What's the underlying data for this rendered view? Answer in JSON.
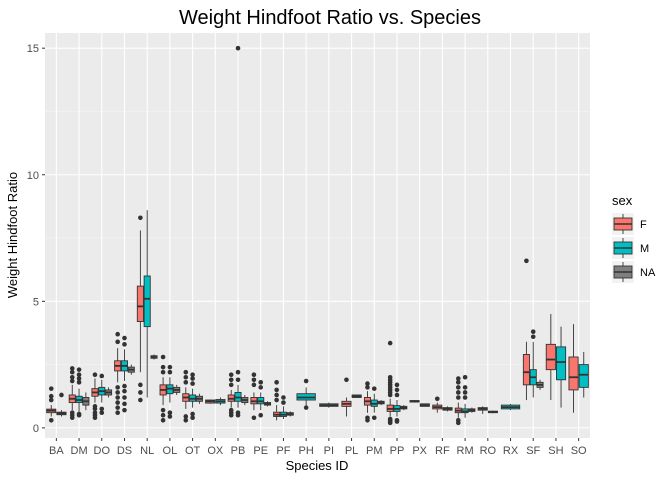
{
  "chart_data": {
    "type": "boxplot",
    "title": "Weight Hindfoot Ratio vs. Species",
    "xlabel": "Species ID",
    "ylabel": "Weight Hindfoot Ratio",
    "ylim": [
      -0.4,
      15.6
    ],
    "yticks": [
      0,
      5,
      10,
      15
    ],
    "grid": true,
    "categories": [
      "BA",
      "DM",
      "DO",
      "DS",
      "NL",
      "OL",
      "OT",
      "OX",
      "PB",
      "PE",
      "PF",
      "PH",
      "PI",
      "PL",
      "PM",
      "PP",
      "PX",
      "RF",
      "RM",
      "RO",
      "RX",
      "SF",
      "SH",
      "SO"
    ],
    "legend": {
      "title": "sex",
      "position": "right",
      "entries": [
        {
          "label": "F",
          "color": "#F8766D"
        },
        {
          "label": "M",
          "color": "#00BFC4"
        },
        {
          "label": "NA",
          "color": "#7F7F7F"
        }
      ]
    },
    "series": [
      {
        "sex": "F",
        "color": "#F8766D",
        "boxes": [
          {
            "cat": "BA",
            "q1": 0.6,
            "median": 0.68,
            "q3": 0.74,
            "lo": 0.45,
            "hi": 0.9,
            "out": [
              1.1,
              1.25,
              1.55,
              0.3
            ]
          },
          {
            "cat": "DM",
            "q1": 1.0,
            "median": 1.15,
            "q3": 1.3,
            "lo": 0.7,
            "hi": 1.7,
            "out": [
              0.4,
              0.5,
              0.6,
              1.85,
              2.0,
              2.2,
              2.35
            ]
          },
          {
            "cat": "DO",
            "q1": 1.25,
            "median": 1.4,
            "q3": 1.55,
            "lo": 1.0,
            "hi": 1.95,
            "out": [
              0.4,
              0.5,
              0.6,
              0.75,
              0.85,
              2.1
            ]
          },
          {
            "cat": "DS",
            "q1": 2.25,
            "median": 2.45,
            "q3": 2.65,
            "lo": 1.8,
            "hi": 3.15,
            "out": [
              0.6,
              0.8,
              1.0,
              1.2,
              1.4,
              1.6,
              3.4,
              3.7
            ]
          },
          {
            "cat": "NL",
            "q1": 4.2,
            "median": 4.8,
            "q3": 5.6,
            "lo": 2.2,
            "hi": 7.8,
            "out": [
              1.1,
              1.4,
              1.7,
              8.3
            ]
          },
          {
            "cat": "OL",
            "q1": 1.3,
            "median": 1.5,
            "q3": 1.7,
            "lo": 0.9,
            "hi": 2.0,
            "out": [
              0.3,
              0.5,
              0.7,
              2.2,
              2.4,
              2.8
            ]
          },
          {
            "cat": "OT",
            "q1": 1.05,
            "median": 1.2,
            "q3": 1.35,
            "lo": 0.75,
            "hi": 1.6,
            "out": [
              0.3,
              0.45,
              1.8,
              2.0,
              2.2
            ]
          },
          {
            "cat": "PB",
            "q1": 1.05,
            "median": 1.15,
            "q3": 1.3,
            "lo": 0.8,
            "hi": 1.5,
            "out": [
              0.5,
              0.6,
              0.7,
              1.7,
              1.9,
              2.1
            ]
          },
          {
            "cat": "PE",
            "q1": 0.95,
            "median": 1.05,
            "q3": 1.2,
            "lo": 0.7,
            "hi": 1.4,
            "out": [
              0.4,
              1.7,
              1.9,
              2.1
            ]
          },
          {
            "cat": "PF",
            "q1": 0.45,
            "median": 0.52,
            "q3": 0.62,
            "lo": 0.3,
            "hi": 0.9,
            "out": [
              1.1,
              1.3,
              1.5,
              1.8
            ]
          },
          {
            "cat": "PM",
            "q1": 0.9,
            "median": 1.05,
            "q3": 1.2,
            "lo": 0.6,
            "hi": 1.45,
            "out": [
              0.3,
              0.4,
              1.6,
              1.75
            ]
          },
          {
            "cat": "PP",
            "q1": 0.65,
            "median": 0.75,
            "q3": 0.9,
            "lo": 0.45,
            "hi": 1.15,
            "out": [
              0.2,
              0.25,
              0.3,
              0.35,
              1.3,
              1.4,
              1.5,
              1.6,
              1.7,
              1.8,
              1.9,
              2.0,
              3.35
            ]
          },
          {
            "cat": "RM",
            "q1": 0.6,
            "median": 0.68,
            "q3": 0.78,
            "lo": 0.4,
            "hi": 1.0,
            "out": [
              0.2,
              0.3,
              1.2,
              1.4,
              1.6,
              1.8,
              1.95
            ]
          },
          {
            "cat": "SF",
            "q1": 1.7,
            "median": 2.2,
            "q3": 2.9,
            "lo": 1.1,
            "hi": 3.4,
            "out": [
              6.6
            ]
          },
          {
            "cat": "SH",
            "q1": 2.3,
            "median": 2.7,
            "q3": 3.3,
            "lo": 1.1,
            "hi": 4.5,
            "out": []
          },
          {
            "cat": "SO",
            "q1": 1.5,
            "median": 2.0,
            "q3": 2.8,
            "lo": 0.6,
            "hi": 4.1,
            "out": []
          }
        ]
      },
      {
        "sex": "M",
        "color": "#00BFC4",
        "boxes": [
          {
            "cat": "DM",
            "q1": 1.0,
            "median": 1.1,
            "q3": 1.25,
            "lo": 0.65,
            "hi": 1.55,
            "out": [
              0.5,
              0.55,
              1.8,
              1.95,
              2.1,
              2.3
            ]
          },
          {
            "cat": "DO",
            "q1": 1.3,
            "median": 1.45,
            "q3": 1.6,
            "lo": 1.0,
            "hi": 1.9,
            "out": [
              0.6,
              0.75,
              2.05
            ]
          },
          {
            "cat": "DS",
            "q1": 2.25,
            "median": 2.45,
            "q3": 2.65,
            "lo": 1.85,
            "hi": 3.1,
            "out": [
              0.7,
              0.95,
              1.2,
              1.45,
              1.65,
              3.3,
              3.55
            ]
          },
          {
            "cat": "NL",
            "q1": 4.0,
            "median": 5.1,
            "q3": 6.0,
            "lo": 1.2,
            "hi": 8.6,
            "out": []
          },
          {
            "cat": "OL",
            "q1": 1.35,
            "median": 1.55,
            "q3": 1.7,
            "lo": 1.0,
            "hi": 2.0,
            "out": [
              0.45,
              0.6,
              2.2,
              2.4
            ]
          },
          {
            "cat": "OT",
            "q1": 1.05,
            "median": 1.15,
            "q3": 1.3,
            "lo": 0.8,
            "hi": 1.55,
            "out": [
              0.4,
              0.55,
              1.75,
              1.95,
              2.1
            ]
          },
          {
            "cat": "OX",
            "q1": 0.98,
            "median": 1.05,
            "q3": 1.12,
            "lo": 0.9,
            "hi": 1.2,
            "out": []
          },
          {
            "cat": "PB",
            "q1": 1.05,
            "median": 1.2,
            "q3": 1.4,
            "lo": 0.8,
            "hi": 1.7,
            "out": [
              0.5,
              0.6,
              1.9,
              2.2,
              15.0
            ]
          },
          {
            "cat": "PE",
            "q1": 0.95,
            "median": 1.05,
            "q3": 1.2,
            "lo": 0.7,
            "hi": 1.4,
            "out": [
              0.5,
              1.6,
              1.8
            ]
          },
          {
            "cat": "PF",
            "q1": 0.45,
            "median": 0.52,
            "q3": 0.62,
            "lo": 0.35,
            "hi": 0.85,
            "out": [
              1.0,
              1.2
            ]
          },
          {
            "cat": "PH",
            "q1": 1.1,
            "median": 1.2,
            "q3": 1.35,
            "lo": 0.8,
            "hi": 1.6,
            "out": [
              0.8,
              1.85
            ]
          },
          {
            "cat": "PI",
            "q1": 0.85,
            "median": 0.9,
            "q3": 0.95,
            "lo": 0.8,
            "hi": 1.0,
            "out": []
          },
          {
            "cat": "PL",
            "q1": 1.2,
            "median": 1.25,
            "q3": 1.3,
            "lo": 1.2,
            "hi": 1.3,
            "out": []
          },
          {
            "cat": "PM",
            "q1": 0.85,
            "median": 0.95,
            "q3": 1.1,
            "lo": 0.6,
            "hi": 1.35,
            "out": [
              0.4,
              1.55
            ]
          },
          {
            "cat": "PP",
            "q1": 0.65,
            "median": 0.75,
            "q3": 0.88,
            "lo": 0.45,
            "hi": 1.1,
            "out": [
              0.25,
              0.3,
              1.3,
              1.5,
              1.7
            ]
          },
          {
            "cat": "RM",
            "q1": 0.6,
            "median": 0.65,
            "q3": 0.75,
            "lo": 0.4,
            "hi": 0.95,
            "out": [
              1.2,
              1.4,
              1.6,
              2.0
            ]
          },
          {
            "cat": "RX",
            "q1": 0.75,
            "median": 0.82,
            "q3": 0.9,
            "lo": 0.7,
            "hi": 0.95,
            "out": []
          },
          {
            "cat": "SF",
            "q1": 1.7,
            "median": 2.0,
            "q3": 2.3,
            "lo": 1.2,
            "hi": 3.4,
            "out": [
              3.6,
              3.8
            ]
          },
          {
            "cat": "SH",
            "q1": 1.9,
            "median": 2.6,
            "q3": 3.2,
            "lo": 0.8,
            "hi": 4.0,
            "out": []
          },
          {
            "cat": "SO",
            "q1": 1.6,
            "median": 2.1,
            "q3": 2.5,
            "lo": 1.2,
            "hi": 3.0,
            "out": []
          }
        ]
      },
      {
        "sex": "NA",
        "color": "#7F7F7F",
        "boxes": [
          {
            "cat": "BA",
            "q1": 0.52,
            "median": 0.57,
            "q3": 0.62,
            "lo": 0.45,
            "hi": 0.7,
            "out": [
              1.3
            ]
          },
          {
            "cat": "DM",
            "q1": 0.9,
            "median": 1.05,
            "q3": 1.2,
            "lo": 0.7,
            "hi": 1.4,
            "out": []
          },
          {
            "cat": "DO",
            "q1": 1.3,
            "median": 1.4,
            "q3": 1.5,
            "lo": 1.2,
            "hi": 1.6,
            "out": []
          },
          {
            "cat": "DS",
            "q1": 2.2,
            "median": 2.3,
            "q3": 2.4,
            "lo": 2.1,
            "hi": 2.5,
            "out": []
          },
          {
            "cat": "NL",
            "q1": 2.75,
            "median": 2.8,
            "q3": 2.85,
            "lo": 2.7,
            "hi": 2.9,
            "out": []
          },
          {
            "cat": "OL",
            "q1": 1.4,
            "median": 1.5,
            "q3": 1.6,
            "lo": 1.3,
            "hi": 1.7,
            "out": []
          },
          {
            "cat": "OT",
            "q1": 1.05,
            "median": 1.15,
            "q3": 1.25,
            "lo": 0.95,
            "hi": 1.35,
            "out": []
          },
          {
            "cat": "PB",
            "q1": 1.0,
            "median": 1.1,
            "q3": 1.2,
            "lo": 0.9,
            "hi": 1.3,
            "out": []
          },
          {
            "cat": "PE",
            "q1": 0.9,
            "median": 0.95,
            "q3": 1.0,
            "lo": 0.85,
            "hi": 1.05,
            "out": []
          },
          {
            "cat": "PF",
            "q1": 0.5,
            "median": 0.55,
            "q3": 0.6,
            "lo": 0.45,
            "hi": 0.65,
            "out": []
          },
          {
            "cat": "PM",
            "q1": 0.95,
            "median": 1.0,
            "q3": 1.05,
            "lo": 0.9,
            "hi": 1.1,
            "out": []
          },
          {
            "cat": "PP",
            "q1": 0.75,
            "median": 0.8,
            "q3": 0.85,
            "lo": 0.7,
            "hi": 0.9,
            "out": []
          },
          {
            "cat": "PX",
            "q1": 0.85,
            "median": 0.9,
            "q3": 0.95,
            "lo": 0.85,
            "hi": 0.95,
            "out": []
          },
          {
            "cat": "RF",
            "q1": 0.7,
            "median": 0.75,
            "q3": 0.8,
            "lo": 0.65,
            "hi": 0.85,
            "out": []
          },
          {
            "cat": "RM",
            "q1": 0.65,
            "median": 0.7,
            "q3": 0.75,
            "lo": 0.6,
            "hi": 0.8,
            "out": []
          },
          {
            "cat": "RO",
            "q1": 0.6,
            "median": 0.63,
            "q3": 0.66,
            "lo": 0.58,
            "hi": 0.68,
            "out": []
          },
          {
            "cat": "SF",
            "q1": 1.6,
            "median": 1.7,
            "q3": 1.8,
            "lo": 1.5,
            "hi": 1.9,
            "out": []
          }
        ]
      }
    ],
    "extra_groups": {
      "PH": {
        "groups": 1
      },
      "PI": {
        "groups": 1
      },
      "PL": {
        "groups": 2,
        "F": {
          "cat": "PL",
          "q1": 0.85,
          "median": 0.95,
          "q3": 1.05,
          "lo": 0.45,
          "hi": 1.2,
          "out": [
            1.9
          ]
        }
      },
      "PX": {
        "groups": 2,
        "F": {
          "cat": "PX",
          "q1": 1.02,
          "median": 1.05,
          "q3": 1.08,
          "lo": 1.0,
          "hi": 1.1,
          "out": []
        }
      },
      "RF": {
        "groups": 2,
        "F": {
          "cat": "RF",
          "q1": 0.75,
          "median": 0.82,
          "q3": 0.9,
          "lo": 0.6,
          "hi": 1.0,
          "out": [
            1.15
          ]
        }
      },
      "RO": {
        "groups": 2,
        "F": {
          "cat": "RO",
          "q1": 0.7,
          "median": 0.75,
          "q3": 0.8,
          "lo": 0.55,
          "hi": 0.85,
          "out": []
        }
      },
      "OX": {
        "groups": 2,
        "F": {
          "cat": "OX",
          "q1": 0.98,
          "median": 1.05,
          "q3": 1.1,
          "lo": 0.95,
          "hi": 1.12,
          "out": []
        }
      }
    }
  }
}
